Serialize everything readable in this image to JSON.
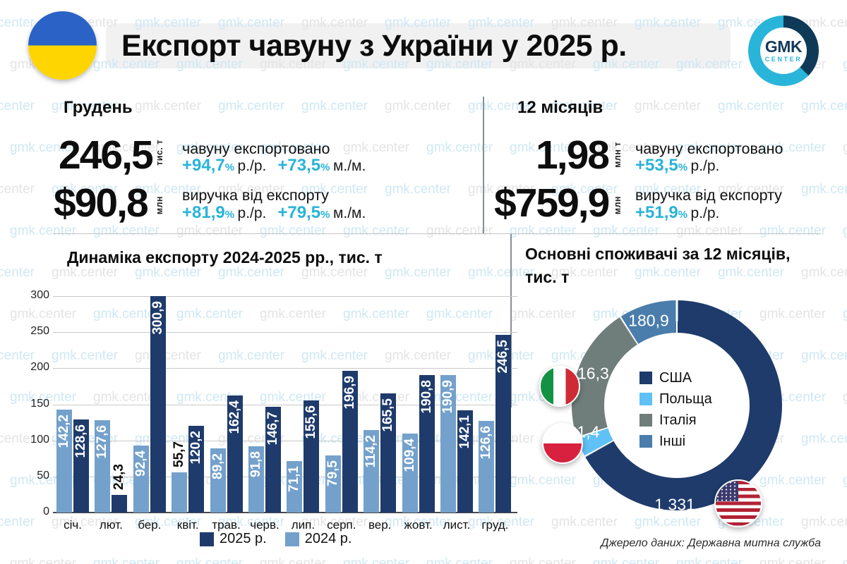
{
  "watermark": {
    "text": "gmk.center",
    "blue": "#cfe8f4",
    "gray": "#e4e4e4"
  },
  "header": {
    "title": "Експорт чавуну з України у 2025 р.",
    "logo": {
      "top": "GMK",
      "bottom": "CENTER",
      "navy": "#14395c",
      "cyan": "#29b5d9"
    }
  },
  "accent_color": "#29b3d8",
  "stats": {
    "left": {
      "title": "Грудень",
      "rows": [
        {
          "value": "246,5",
          "unit": "тис. т",
          "label": "чавуну експортовано",
          "changes": [
            {
              "num": "+94,7",
              "pct": "%",
              "suffix": "р./р."
            },
            {
              "num": "+73,5",
              "pct": "%",
              "suffix": "м./м."
            }
          ]
        },
        {
          "value": "$90,8",
          "unit": "млн",
          "label": "виручка від експорту",
          "changes": [
            {
              "num": "+81,9",
              "pct": "%",
              "suffix": "р./р."
            },
            {
              "num": "+79,5",
              "pct": "%",
              "suffix": "м./м."
            }
          ]
        }
      ]
    },
    "right": {
      "title": "12 місяців",
      "rows": [
        {
          "value": "1,98",
          "unit": "млн т",
          "label": "чавуну експортовано",
          "changes": [
            {
              "num": "+53,5",
              "pct": "%",
              "suffix": "р./р."
            }
          ]
        },
        {
          "value": "$759,9",
          "unit": "млн",
          "label": "виручка від експорту",
          "changes": [
            {
              "num": "+51,9",
              "pct": "%",
              "suffix": "р./р."
            }
          ]
        }
      ]
    }
  },
  "chart_data": [
    {
      "type": "bar",
      "title": "Динаміка експорту 2024-2025 рр., тис. т",
      "categories": [
        "січ.",
        "лют.",
        "бер.",
        "квіт.",
        "трав.",
        "черв.",
        "лип.",
        "серп.",
        "вер.",
        "жовт.",
        "лист.",
        "груд."
      ],
      "series": [
        {
          "name": "2024 р.",
          "color": "#74a1cb",
          "values": [
            142.2,
            127.6,
            92.4,
            55.7,
            89.2,
            91.8,
            71.1,
            79.5,
            114.2,
            109.4,
            190.9,
            126.6
          ]
        },
        {
          "name": "2025 р.",
          "color": "#1e3b6b",
          "values": [
            128.6,
            24.3,
            300.9,
            120.2,
            162.4,
            146.7,
            155.6,
            196.9,
            165.5,
            190.8,
            142.1,
            246.5
          ]
        }
      ],
      "legend_order": [
        "2025 р.",
        "2024 р."
      ],
      "ylim": [
        0,
        300
      ],
      "yticks": [
        0,
        50,
        100,
        150,
        200,
        250,
        300
      ],
      "grid": true,
      "outside_label_threshold": 60
    },
    {
      "type": "donut",
      "title": "Основні споживачі за 12 місяців, тис. т",
      "slices": [
        {
          "label": "США",
          "value": 1331,
          "display": "1 331",
          "color": "#1e3b6b"
        },
        {
          "label": "Польща",
          "value": 61.4,
          "display": "61,4",
          "color": "#5fc1f5"
        },
        {
          "label": "Італія",
          "value": 416.3,
          "display": "416,3",
          "color": "#6f7d7b"
        },
        {
          "label": "Інші",
          "value": 180.9,
          "display": "180,9",
          "color": "#4a7dab"
        }
      ]
    }
  ],
  "source": "Джерело даних: Державна митна служба"
}
